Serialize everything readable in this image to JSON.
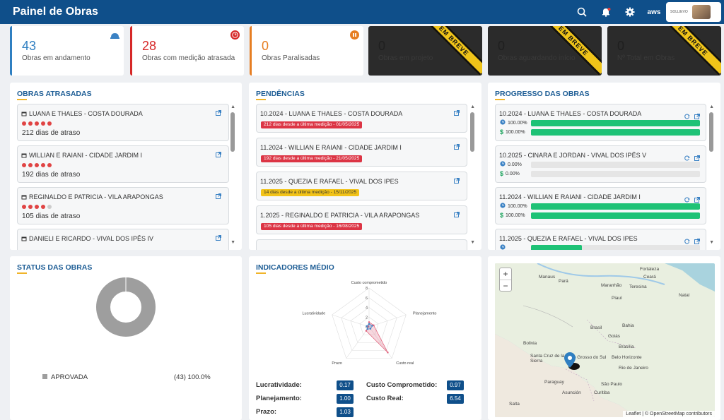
{
  "header": {
    "title": "Painel de Obras",
    "logo_text": "SOLLIEVO",
    "icons": [
      "search-icon",
      "bell-icon",
      "gear-icon",
      "aws-icon"
    ],
    "aws": "aws"
  },
  "kpis": [
    {
      "value": "43",
      "label": "Obras em andamento",
      "color": "#2f7fc1",
      "icon": "helmet-icon"
    },
    {
      "value": "28",
      "label": "Obras com medição atrasada",
      "color": "#d62828",
      "icon": "clock-icon"
    },
    {
      "value": "0",
      "label": "Obras Paralisadas",
      "color": "#e67e22",
      "icon": "pause-icon"
    },
    {
      "value": "0",
      "label": "Obras em projeto",
      "ribbon": "EM BREVE"
    },
    {
      "value": "0",
      "label": "Obras aguardando início",
      "ribbon": "EM BREVE"
    },
    {
      "value": "0",
      "label": "Nº Total em Obras",
      "ribbon": "EM BREVE"
    }
  ],
  "atrasadas": {
    "title": "OBRAS ATRASADAS",
    "items": [
      {
        "name": "LUANA E THALES - COSTA DOURADA",
        "days": "212 dias de atraso",
        "dots": [
          1,
          1,
          1,
          1,
          1
        ]
      },
      {
        "name": "WILLIAN E RAIANI - CIDADE JARDIM I",
        "days": "192 dias de atraso",
        "dots": [
          1,
          1,
          1,
          1,
          1
        ]
      },
      {
        "name": "REGINALDO E PATRICIA - VILA ARAPONGAS",
        "days": "105 dias de atraso",
        "dots": [
          1,
          1,
          1,
          1,
          0
        ]
      },
      {
        "name": "DANIELI E RICARDO - VIVAL DOS IPÊS IV",
        "days": "",
        "dots": []
      }
    ]
  },
  "pendencias": {
    "title": "PENDÊNCIAS",
    "items": [
      {
        "name": "10.2024 - LUANA E THALES - COSTA DOURADA",
        "badge": "212 dias desde a última medição - 01/05/2025",
        "level": "r"
      },
      {
        "name": "11.2024 - WILLIAN E RAIANI - CIDADE JARDIM I",
        "badge": "192 dias desde a última medição - 21/05/2025",
        "level": "r"
      },
      {
        "name": "11.2025 - QUEZIA E RAFAEL - VIVAL DOS IPES",
        "badge": "14 dias desde a última medição - 15/11/2025",
        "level": "y"
      },
      {
        "name": "1.2025 - REGINALDO E PATRICIA - VILA ARAPONGAS",
        "badge": "105 dias desde a última medição - 16/08/2025",
        "level": "r"
      }
    ]
  },
  "progresso": {
    "title": "PROGRESSO DAS OBRAS",
    "items": [
      {
        "name": "10.2024 - LUANA E THALES - COSTA DOURADA",
        "time": "100.00%",
        "cost": "100.00%",
        "time_frac": 1.0,
        "cost_frac": 1.0
      },
      {
        "name": "10.2025 - CINARA E JORDAN - VIVAL DOS IPÊS V",
        "time": "0.00%",
        "cost": "0.00%",
        "time_frac": 0,
        "cost_frac": 0
      },
      {
        "name": "11.2024 - WILLIAN E RAIANI - CIDADE JARDIM I",
        "time": "100.00%",
        "cost": "100.00%",
        "time_frac": 1.0,
        "cost_frac": 1.0
      },
      {
        "name": "11.2025 - QUEZIA E RAFAEL - VIVAL DOS IPES",
        "time": "",
        "cost": "",
        "time_frac": 0.3,
        "cost_frac": 0
      }
    ]
  },
  "status": {
    "title": "STATUS DAS OBRAS",
    "legend_label": "APROVADA",
    "legend_value": "(43) 100.0%",
    "color": "#9e9e9e"
  },
  "indicadores": {
    "title": "INDICADORES MÉDIO",
    "rows": [
      {
        "label": "Lucratividade:",
        "value": "0.17"
      },
      {
        "label": "Custo Comprometido:",
        "value": "0.97"
      },
      {
        "label": "Planejamento:",
        "value": "1.00"
      },
      {
        "label": "Custo Real:",
        "value": "6.54"
      },
      {
        "label": "Prazo:",
        "value": "1.03"
      }
    ]
  },
  "chart_data": {
    "type": "radar",
    "axes": [
      "Custo comprometido",
      "Planejamento",
      "Custo real",
      "Prazo",
      "Lucratividade"
    ],
    "ticks": [
      "0",
      "2",
      "4",
      "6",
      "8"
    ],
    "rmax": 8,
    "series": [
      {
        "values": [
          0.97,
          1.0,
          6.54,
          1.03,
          0.17
        ],
        "color": "#e0607a"
      },
      {
        "values": [
          0.6,
          0.7,
          0.5,
          0.6,
          0.5
        ],
        "color": "#3b82c4"
      }
    ]
  },
  "map": {
    "attribution": "Leaflet | © OpenStreetMap contributors",
    "zoom_in": "+",
    "zoom_out": "−",
    "labels": [
      "Manaus",
      "Fortaleza",
      "Ceará",
      "Teresina",
      "Piauí",
      "Pará",
      "Maranhão",
      "Natal",
      "Bahia",
      "Brasil",
      "Bolivia",
      "Brasília",
      "Goiás",
      "Belo Horizonte",
      "Santa Cruz de la Sierra",
      "Mato Grosso do Sul",
      "Rio de Janeiro",
      "Paraguay",
      "São Paulo",
      "Asunción",
      "Curitiba",
      "Salta"
    ]
  }
}
